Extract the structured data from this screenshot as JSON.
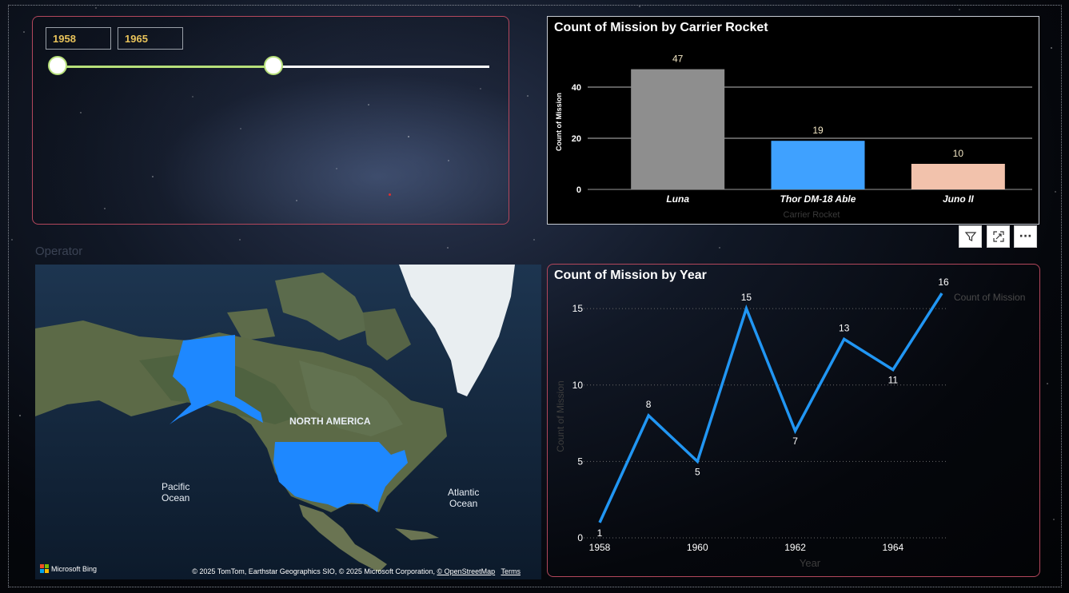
{
  "slicer": {
    "start_label": "1958",
    "end_label": "1965",
    "range_start_fraction": 0.0,
    "range_end_fraction": 0.5,
    "colors": {
      "accent": "#b7e07a",
      "value_text": "#e8c35a",
      "border": "#b3475c"
    }
  },
  "bar_chart": {
    "title": "Count of Mission by Carrier Rocket",
    "ylabel": "Count of Mission",
    "xlabel": "Carrier Rocket"
  },
  "toolbar": {
    "filter_icon": "filter-icon",
    "focus_icon": "focus-mode-icon",
    "more_icon": "more-options-icon",
    "more_label": "···"
  },
  "operator_label": "Operator",
  "map": {
    "label_continent": "NORTH AMERICA",
    "label_pacific_1": "Pacific",
    "label_pacific_2": "Ocean",
    "label_atlantic_1": "Atlantic",
    "label_atlantic_2": "Ocean",
    "bing_label": "Microsoft Bing",
    "attribution": "© 2025 TomTom, Earthstar Geographics SIO, © 2025 Microsoft Corporation,",
    "osm_link": "© OpenStreetMap",
    "terms_link": "Terms",
    "highlight_color": "#1e88ff"
  },
  "line_chart": {
    "title": "Count of Mission by Year",
    "ylabel": "Count of Mission",
    "xlabel": "Year",
    "legend": "Count of Mission"
  },
  "chart_data": [
    {
      "type": "bar",
      "title": "Count of Mission by Carrier Rocket",
      "xlabel": "Carrier Rocket",
      "ylabel": "Count of Mission",
      "categories": [
        "Luna",
        "Thor DM-18 Able",
        "Juno II"
      ],
      "values": [
        47,
        19,
        10
      ],
      "colors": [
        "#8e8e8e",
        "#3fa1ff",
        "#f2c2ac"
      ],
      "yticks": [
        0,
        20,
        40
      ],
      "ylim": [
        0,
        50
      ],
      "grid": true
    },
    {
      "type": "line",
      "title": "Count of Mission by Year",
      "xlabel": "Year",
      "ylabel": "Count of Mission",
      "x": [
        1958,
        1959,
        1960,
        1961,
        1962,
        1963,
        1964,
        1965
      ],
      "series": [
        {
          "name": "Count of Mission",
          "values": [
            1,
            8,
            5,
            15,
            7,
            13,
            11,
            16
          ],
          "color": "#2196f3"
        }
      ],
      "xticks": [
        1958,
        1960,
        1962,
        1964
      ],
      "yticks": [
        0,
        5,
        10,
        15
      ],
      "ylim": [
        0,
        16
      ],
      "grid": true,
      "legend_position": "top-right"
    }
  ]
}
